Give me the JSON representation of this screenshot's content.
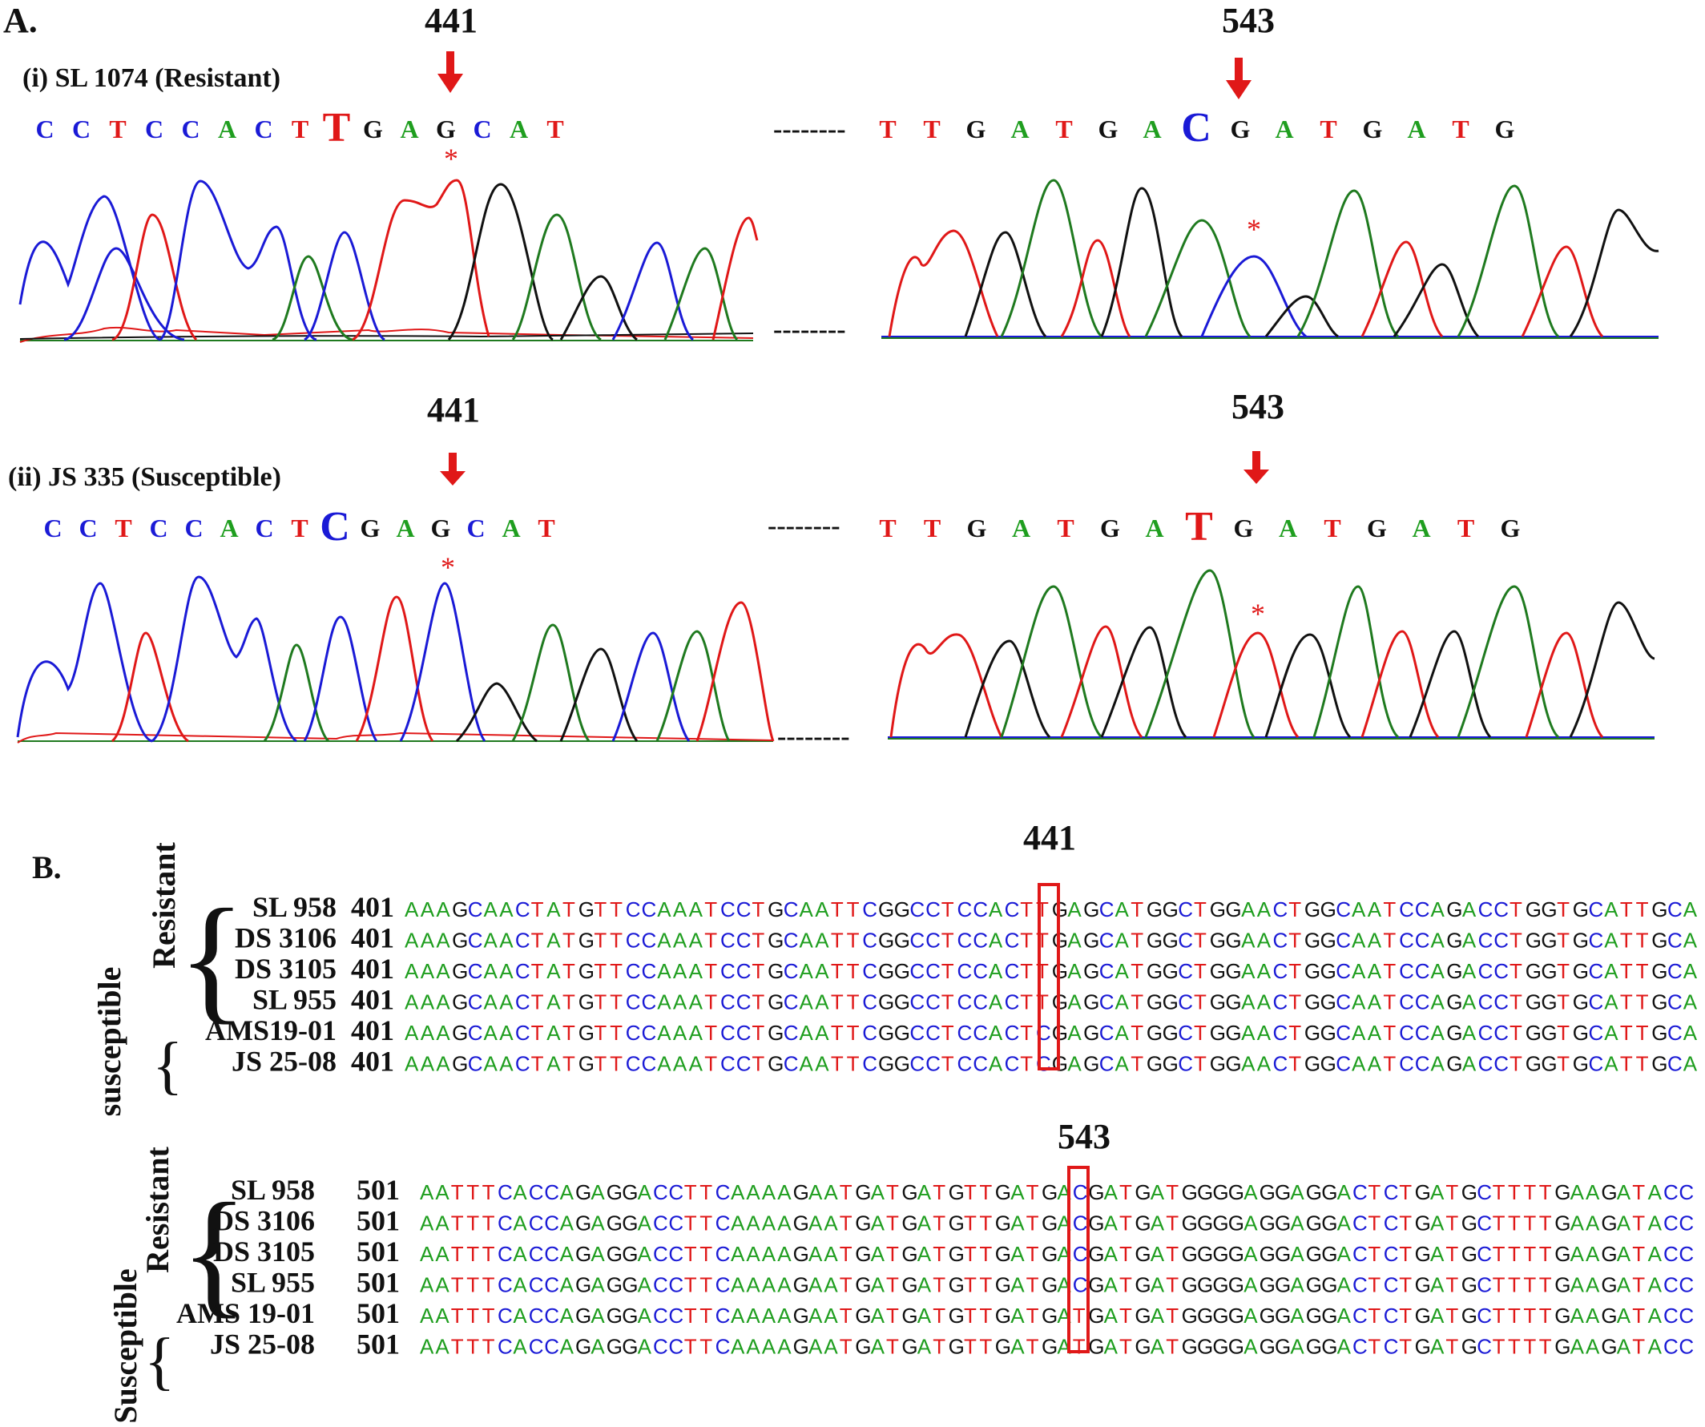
{
  "panelA": {
    "label": "A.",
    "colors": {
      "A": "#1f9e1f",
      "C": "#1a1ad6",
      "G": "#111111",
      "T": "#e01818",
      "arrow": "#e01818",
      "star": "#e01818"
    },
    "gap": "--------",
    "tracks": [
      {
        "title": "(i) SL 1074 (Resistant)",
        "left": {
          "pos": "441",
          "before": "CCTCCACT",
          "snp": "T",
          "after": "GAGCAT"
        },
        "right": {
          "pos": "543",
          "before": "TTGATGA",
          "snp": "C",
          "after": "GATGATG"
        },
        "star": "*"
      },
      {
        "title": "(ii) JS 335 (Susceptible)",
        "left": {
          "pos": "441",
          "before": "CCTCCACT",
          "snp": "C",
          "after": "GAGCAT"
        },
        "right": {
          "pos": "543",
          "before": "TTGATGA",
          "snp": "T",
          "after": "GATGATG"
        },
        "star": "*"
      }
    ]
  },
  "panelB": {
    "label": "B.",
    "colors": {
      "A": "#1f9e1f",
      "C": "#1a1ad6",
      "G": "#111111",
      "T": "#e01818",
      "box": "#e01818"
    },
    "blocks": [
      {
        "marker": "441",
        "group_resistant": "Resistant",
        "group_susceptible": "susceptible",
        "start": "401",
        "rows": [
          {
            "name": "SL 958",
            "seq": "AAAGCAACTATGTTCCAAATCCTGCAATTCGGCCTCCACTTGAGCATGGCTGGAACTGGCAATCCAGACCTGGTGCATTGCA"
          },
          {
            "name": "DS 3106",
            "seq": "AAAGCAACTATGTTCCAAATCCTGCAATTCGGCCTCCACTTGAGCATGGCTGGAACTGGCAATCCAGACCTGGTGCATTGCA"
          },
          {
            "name": "DS 3105",
            "seq": "AAAGCAACTATGTTCCAAATCCTGCAATTCGGCCTCCACTTGAGCATGGCTGGAACTGGCAATCCAGACCTGGTGCATTGCA"
          },
          {
            "name": "SL 955",
            "seq": "AAAGCAACTATGTTCCAAATCCTGCAATTCGGCCTCCACTTGAGCATGGCTGGAACTGGCAATCCAGACCTGGTGCATTGCA"
          },
          {
            "name": "AMS19-01",
            "seq": "AAAGCAACTATGTTCCAAATCCTGCAATTCGGCCTCCACTCGAGCATGGCTGGAACTGGCAATCCAGACCTGGTGCATTGCA"
          },
          {
            "name": "JS 25-08",
            "seq": "AAAGCAACTATGTTCCAAATCCTGCAATTCGGCCTCCACTCGAGCATGGCTGGAACTGGCAATCCAGACCTGGTGCATTGCA"
          }
        ]
      },
      {
        "marker": "543",
        "group_resistant": "Resistant",
        "group_susceptible": "Susceptible",
        "start": "501",
        "rows": [
          {
            "name": "SL 958",
            "seq": "AATTTCACCAGAGGACCTTCAAAAGAATGATGATGTTGATGACGATGATGGGGAGGAGGACTCTGATGCTTTTGAAGATACC"
          },
          {
            "name": "DS 3106",
            "seq": "AATTTCACCAGAGGACCTTCAAAAGAATGATGATGTTGATGACGATGATGGGGAGGAGGACTCTGATGCTTTTGAAGATACC"
          },
          {
            "name": "DS 3105",
            "seq": "AATTTCACCAGAGGACCTTCAAAAGAATGATGATGTTGATGACGATGATGGGGAGGAGGACTCTGATGCTTTTGAAGATACC"
          },
          {
            "name": "SL 955",
            "seq": "AATTTCACCAGAGGACCTTCAAAAGAATGATGATGTTGATGACGATGATGGGGAGGAGGACTCTGATGCTTTTGAAGATACC"
          },
          {
            "name": "AMS 19-01",
            "seq": "AATTTCACCAGAGGACCTTCAAAAGAATGATGATGTTGATGATGATGATGGGGAGGAGGACTCTGATGCTTTTGAAGATACC"
          },
          {
            "name": "JS 25-08",
            "seq": "AATTTCACCAGAGGACCTTCAAAAGAATGATGATGTTGATGATGATGATGGGGAGGAGGACTCTGATGCTTTTGAAGATACC"
          }
        ]
      }
    ]
  }
}
